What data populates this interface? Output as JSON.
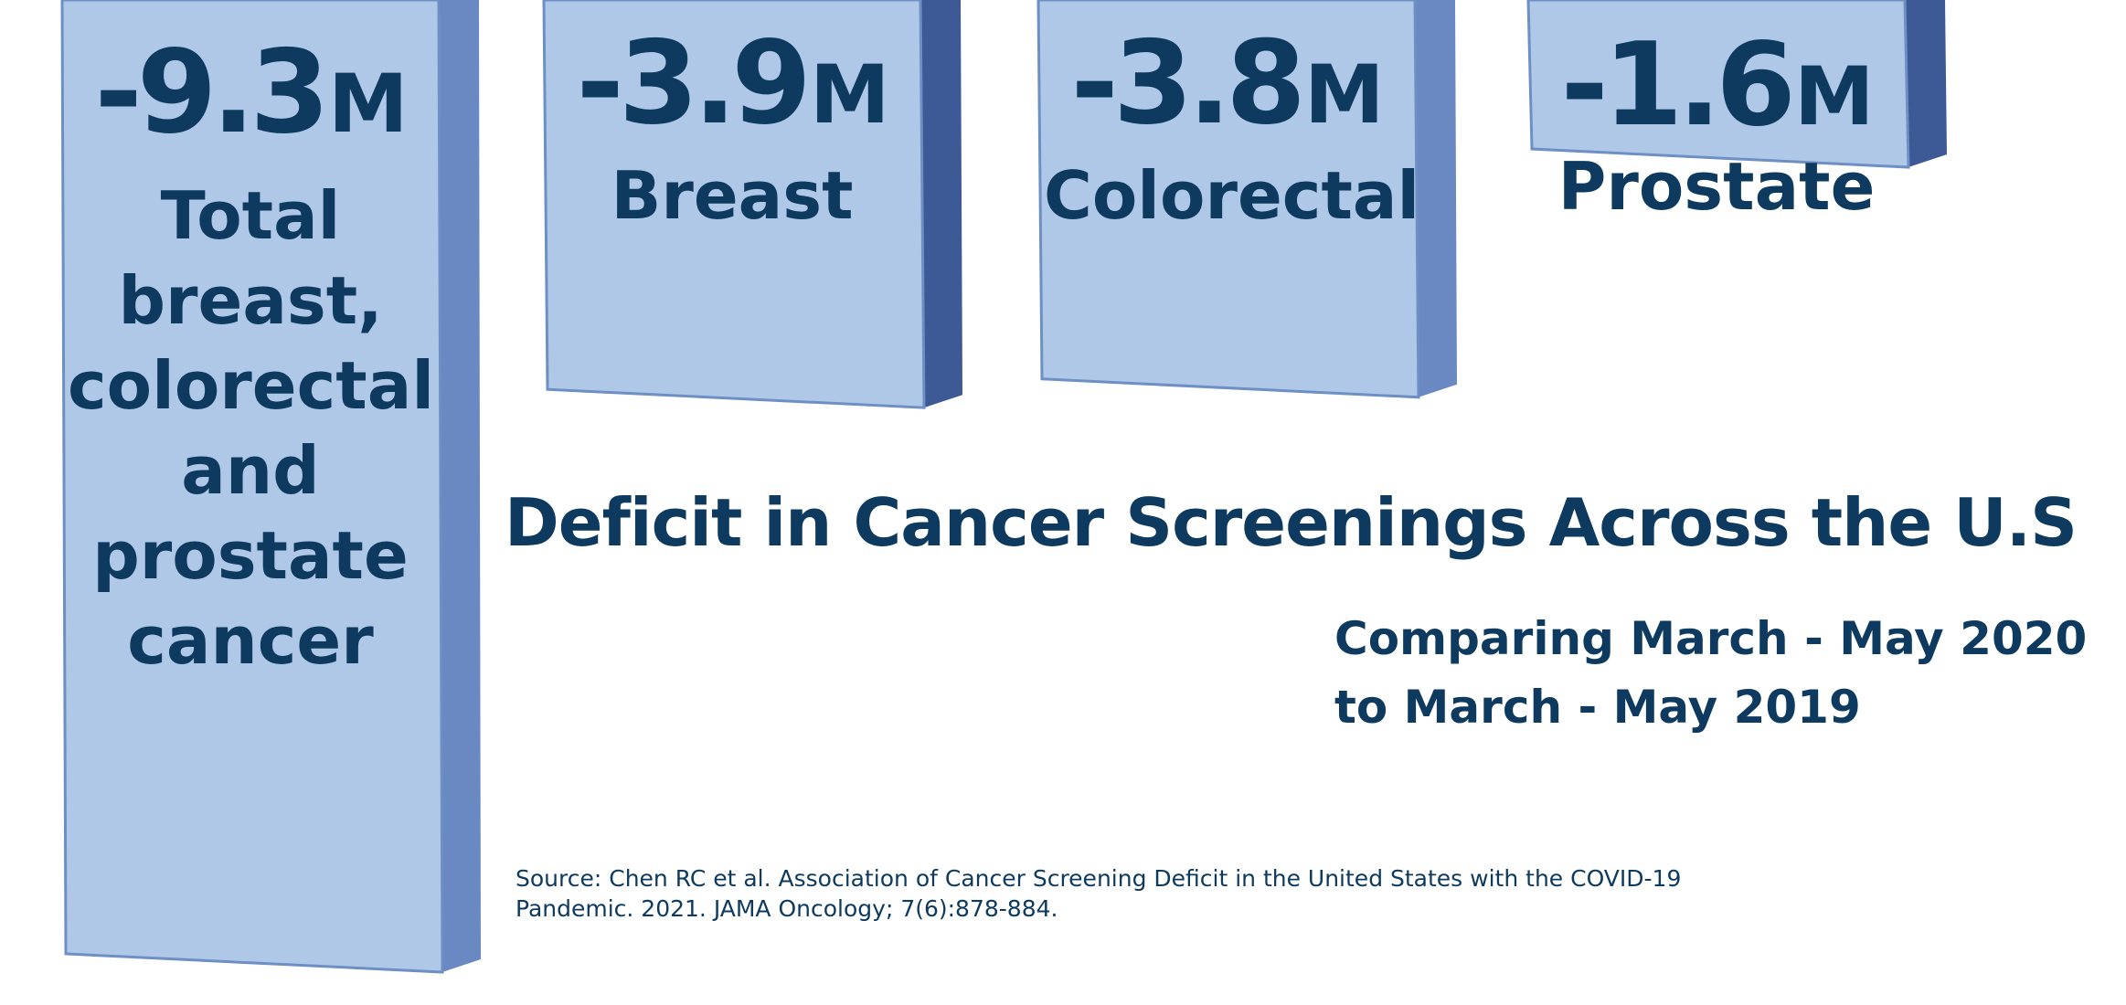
{
  "chart_data": {
    "type": "bar",
    "title": "Deficit in Cancer Screenings Across the U.S",
    "subtitle": [
      "Comparing March - May 2020",
      "to March - May 2019"
    ],
    "source": [
      "Source: Chen RC et al. Association of Cancer Screening Deficit in the United States with the COVID-19",
      "Pandemic. 2021. JAMA Oncology; 7(6):878-884."
    ],
    "unit": "M",
    "categories": [
      "Total breast, colorectal and prostate cancer",
      "Breast",
      "Colorectal",
      "Prostate"
    ],
    "values": [
      -9.3,
      -3.9,
      -3.8,
      -1.6
    ],
    "value_labels": [
      "-9.3",
      "-3.9",
      "-3.8",
      "-1.6"
    ],
    "label_lines": [
      [
        "Total",
        "breast,",
        "colorectal",
        "and",
        "prostate",
        "cancer"
      ],
      [
        "Breast"
      ],
      [
        "Colorectal"
      ],
      [
        "Prostate"
      ]
    ],
    "colors": {
      "face": "#afc8e8",
      "edge": "#6d8fc4",
      "side": "#6a88c2",
      "side_dark": "#3e5a96",
      "text": "#0d3a5e"
    }
  }
}
